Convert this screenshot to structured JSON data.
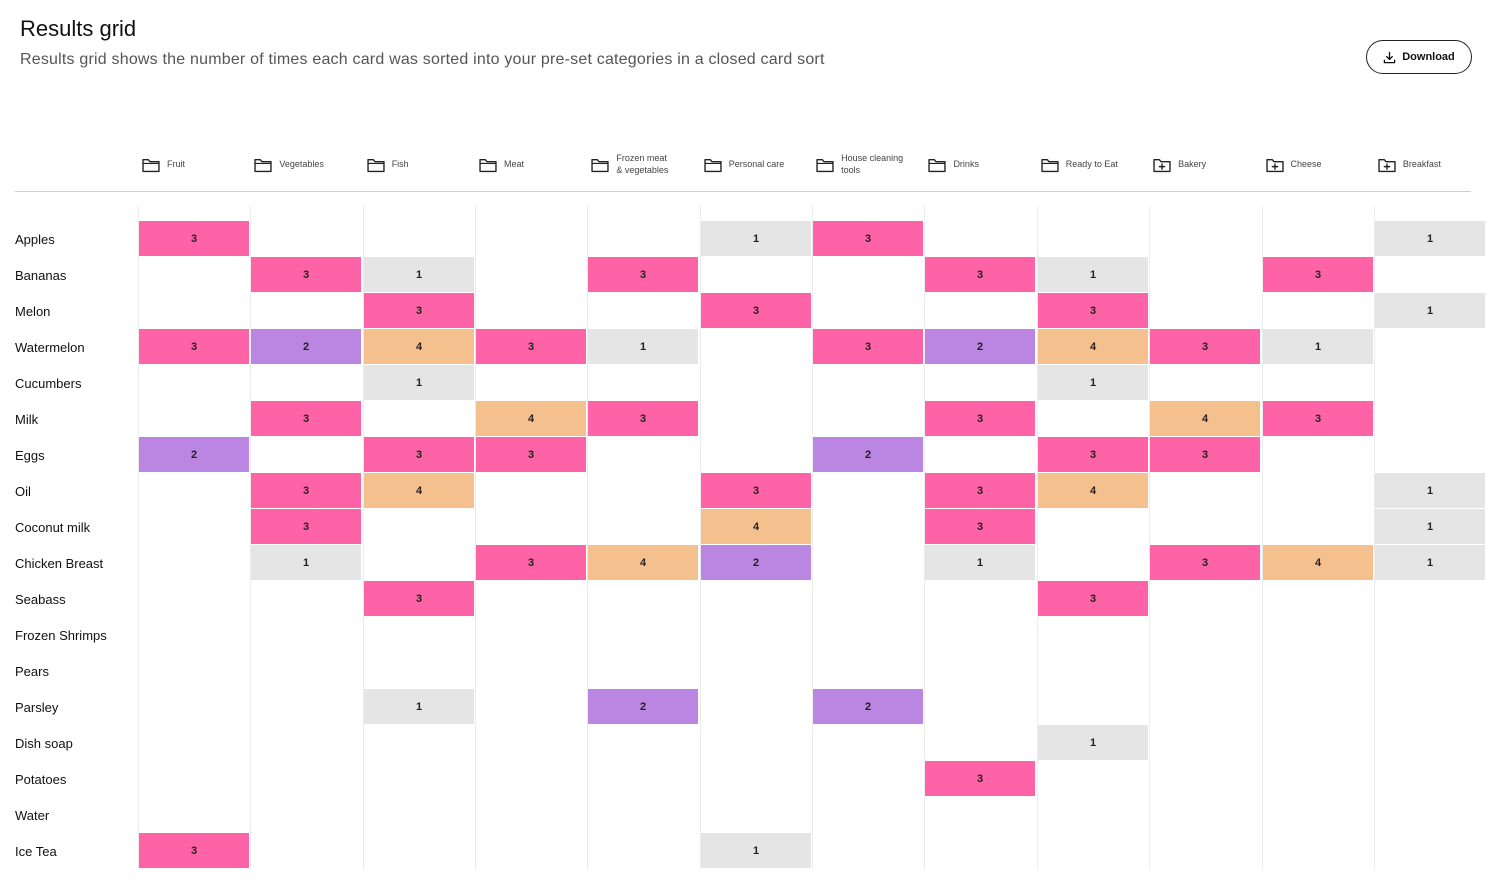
{
  "header": {
    "title": "Results grid",
    "subtitle": "Results grid shows the number of times each card was sorted into your pre-set categories in a closed card sort",
    "download_label": "Download"
  },
  "categories": [
    {
      "label": "Fruit",
      "icon": "folder-icon"
    },
    {
      "label": "Vegetables",
      "icon": "folder-icon"
    },
    {
      "label": "Fish",
      "icon": "folder-icon"
    },
    {
      "label": "Meat",
      "icon": "folder-icon"
    },
    {
      "label": "Frozen meat\n& vegetables",
      "icon": "folder-icon"
    },
    {
      "label": "Personal care",
      "icon": "folder-icon"
    },
    {
      "label": "House cleaning\ntools",
      "icon": "folder-icon"
    },
    {
      "label": "Drinks",
      "icon": "folder-icon"
    },
    {
      "label": "Ready to Eat",
      "icon": "folder-icon"
    },
    {
      "label": "Bakery",
      "icon": "folder-plus-icon"
    },
    {
      "label": "Cheese",
      "icon": "folder-plus-icon"
    },
    {
      "label": "Breakfast",
      "icon": "folder-plus-icon"
    }
  ],
  "colors": {
    "1": "#e5e5e5",
    "2": "#bb86e2",
    "3": "#fd63a6",
    "4": "#f4c08e"
  },
  "rows": [
    {
      "label": "Apples",
      "values": [
        3,
        null,
        null,
        null,
        null,
        1,
        3,
        null,
        null,
        null,
        null,
        1
      ]
    },
    {
      "label": "Bananas",
      "values": [
        null,
        3,
        1,
        null,
        3,
        null,
        null,
        3,
        1,
        null,
        3,
        null
      ]
    },
    {
      "label": "Melon",
      "values": [
        null,
        null,
        3,
        null,
        null,
        3,
        null,
        null,
        3,
        null,
        null,
        1
      ]
    },
    {
      "label": "Watermelon",
      "values": [
        3,
        2,
        4,
        3,
        1,
        null,
        3,
        2,
        4,
        3,
        1,
        null
      ]
    },
    {
      "label": "Cucumbers",
      "values": [
        null,
        null,
        1,
        null,
        null,
        null,
        null,
        null,
        1,
        null,
        null,
        null
      ]
    },
    {
      "label": "Milk",
      "values": [
        null,
        3,
        null,
        4,
        3,
        null,
        null,
        3,
        null,
        4,
        3,
        null
      ]
    },
    {
      "label": "Eggs",
      "values": [
        2,
        null,
        3,
        3,
        null,
        null,
        2,
        null,
        3,
        3,
        null,
        null
      ]
    },
    {
      "label": "Oil",
      "values": [
        null,
        3,
        4,
        null,
        null,
        3,
        null,
        3,
        4,
        null,
        null,
        1
      ]
    },
    {
      "label": "Coconut milk",
      "values": [
        null,
        3,
        null,
        null,
        null,
        4,
        null,
        3,
        null,
        null,
        null,
        1
      ]
    },
    {
      "label": "Chicken Breast",
      "values": [
        null,
        1,
        null,
        3,
        4,
        2,
        null,
        1,
        null,
        3,
        4,
        1
      ]
    },
    {
      "label": "Seabass",
      "values": [
        null,
        null,
        3,
        null,
        null,
        null,
        null,
        null,
        3,
        null,
        null,
        null
      ]
    },
    {
      "label": "Frozen Shrimps",
      "values": [
        null,
        null,
        null,
        null,
        null,
        null,
        null,
        null,
        null,
        null,
        null,
        null
      ]
    },
    {
      "label": "Pears",
      "values": [
        null,
        null,
        null,
        null,
        null,
        null,
        null,
        null,
        null,
        null,
        null,
        null
      ]
    },
    {
      "label": "Parsley",
      "values": [
        null,
        null,
        1,
        null,
        2,
        null,
        2,
        null,
        null,
        null,
        null,
        null
      ]
    },
    {
      "label": "Dish soap",
      "values": [
        null,
        null,
        null,
        null,
        null,
        null,
        null,
        null,
        1,
        null,
        null,
        null
      ]
    },
    {
      "label": "Potatoes",
      "values": [
        null,
        null,
        null,
        null,
        null,
        null,
        null,
        3,
        null,
        null,
        null,
        null
      ]
    },
    {
      "label": "Water",
      "values": [
        null,
        null,
        null,
        null,
        null,
        null,
        null,
        null,
        null,
        null,
        null,
        null
      ]
    },
    {
      "label": "Ice Tea",
      "values": [
        3,
        null,
        null,
        null,
        null,
        1,
        null,
        null,
        null,
        null,
        null,
        null
      ]
    }
  ]
}
